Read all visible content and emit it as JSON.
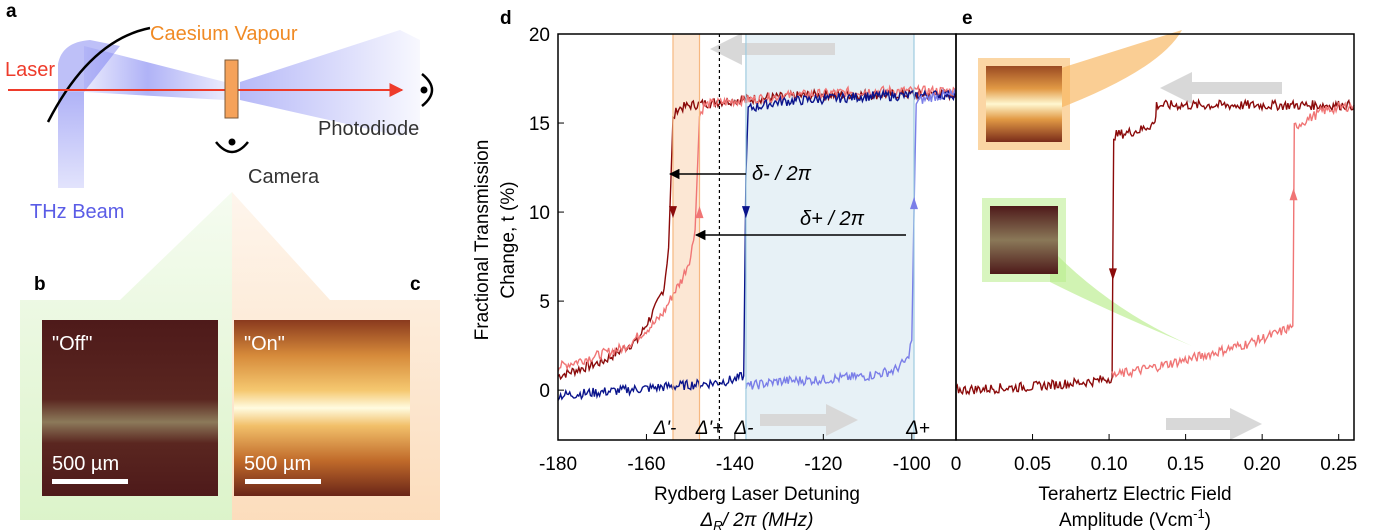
{
  "panels": {
    "a": "a",
    "b": "b",
    "c": "c",
    "d": "d",
    "e": "e"
  },
  "schematic": {
    "laser": "Laser",
    "vapour": "Caesium Vapour",
    "photodiode": "Photodiode",
    "camera": "Camera",
    "thz": "THz Beam"
  },
  "images": {
    "off_label": "\"Off\"",
    "on_label": "\"On\"",
    "scale_off": "500 µm",
    "scale_on": "500 µm"
  },
  "colors": {
    "dark_red": "#8b0a0a",
    "light_red": "#f07575",
    "dark_blue": "#0a148c",
    "light_blue": "#7a7ee8",
    "orange_band": "#fbe3cc",
    "blue_band": "#e3eff4",
    "arrow_grey": "#d8d8d8"
  },
  "chart_data": [
    {
      "type": "line",
      "panel": "d",
      "xlabel": "Rydberg Laser Detuning",
      "xlabel2_sym": "Δ",
      "xlabel2_sub": "R",
      "xlabel2_rest": "/ 2π (MHz)",
      "ylabel1": "Fractional Transmission",
      "ylabel2": "Change, t (%)",
      "xlim": [
        -180,
        -90
      ],
      "ylim": [
        -2.8,
        20
      ],
      "xticks": [
        "-180",
        "-160",
        "-140",
        "-120",
        "-100"
      ],
      "xtick_values": [
        -180,
        -160,
        -140,
        -120,
        -100
      ],
      "yticks": [
        "0",
        "5",
        "10",
        "15",
        "20"
      ],
      "ytick_values": [
        0,
        5,
        10,
        15,
        20
      ],
      "bands": [
        {
          "color": "orange",
          "x0": -154,
          "x1": -148
        },
        {
          "color": "blue",
          "x0": -137.5,
          "x1": -99.5
        }
      ],
      "vlines": [
        -154,
        -148,
        -143.5,
        -137.5,
        -99.5
      ],
      "markers": [
        "Δ'-",
        "Δ'+",
        "Δ-",
        "Δ+"
      ],
      "marker_x": [
        -154,
        -148,
        -137.5,
        -99.5
      ],
      "annotations": {
        "delta_minus": "δ- / 2π",
        "delta_plus": "δ+ / 2π"
      },
      "series": [
        {
          "color": "dark_red",
          "x": [
            -180,
            -170,
            -162,
            -158,
            -156,
            -155,
            -154,
            -153,
            -150,
            -140,
            -120,
            -100,
            -90
          ],
          "y": [
            0.8,
            1.6,
            2.8,
            4.6,
            5.8,
            8,
            15.2,
            15.8,
            16,
            16.3,
            16.6,
            16.6,
            16.6
          ]
        },
        {
          "color": "light_red",
          "x": [
            -180,
            -165,
            -158,
            -156,
            -154,
            -152,
            -150,
            -149,
            -148,
            -147,
            -145,
            -130,
            -110,
            -90
          ],
          "y": [
            1.3,
            2.4,
            3.8,
            4.4,
            5.4,
            6.2,
            7.5,
            9,
            15.4,
            16,
            16.1,
            16.5,
            16.8,
            16.8
          ]
        },
        {
          "color": "dark_blue",
          "x": [
            -180,
            -160,
            -150,
            -145,
            -140,
            -138,
            -137.5,
            -137,
            -130,
            -110,
            -90
          ],
          "y": [
            -0.3,
            0.1,
            0.3,
            0.4,
            0.6,
            0.8,
            12,
            15.8,
            16.2,
            16.5,
            16.6
          ]
        },
        {
          "color": "light_blue",
          "x": [
            -137.5,
            -130,
            -120,
            -110,
            -104,
            -101,
            -100,
            -99.5,
            -99,
            -95,
            -90
          ],
          "y": [
            0.2,
            0.5,
            0.6,
            0.8,
            1.1,
            1.7,
            2.8,
            10,
            16.2,
            16.5,
            16.6
          ]
        }
      ]
    },
    {
      "type": "line",
      "panel": "e",
      "xlabel": "Terahertz Electric Field",
      "xlabel2": "Amplitude (Vcm",
      "xlabel2_sup": "-1",
      "xlabel2_end": ")",
      "xlim": [
        0,
        0.26
      ],
      "ylim": [
        -2.8,
        20
      ],
      "xticks": [
        "0",
        "0.05",
        "0.10",
        "0.15",
        "0.20",
        "0.25"
      ],
      "xtick_values": [
        0,
        0.05,
        0.1,
        0.15,
        0.2,
        0.25
      ],
      "series": [
        {
          "color": "dark_red",
          "x": [
            0,
            0.05,
            0.09,
            0.102,
            0.1025,
            0.103,
            0.12,
            0.13,
            0.131,
            0.15,
            0.26
          ],
          "y": [
            0,
            0.2,
            0.5,
            0.7,
            8,
            14.3,
            14.6,
            15,
            16,
            16,
            16
          ]
        },
        {
          "color": "light_red",
          "x": [
            0.102,
            0.13,
            0.16,
            0.19,
            0.21,
            0.22,
            0.2205,
            0.221,
            0.24,
            0.26
          ],
          "y": [
            0.8,
            1.3,
            1.9,
            2.6,
            3.2,
            3.6,
            8,
            14.8,
            15.7,
            16
          ]
        }
      ]
    }
  ]
}
